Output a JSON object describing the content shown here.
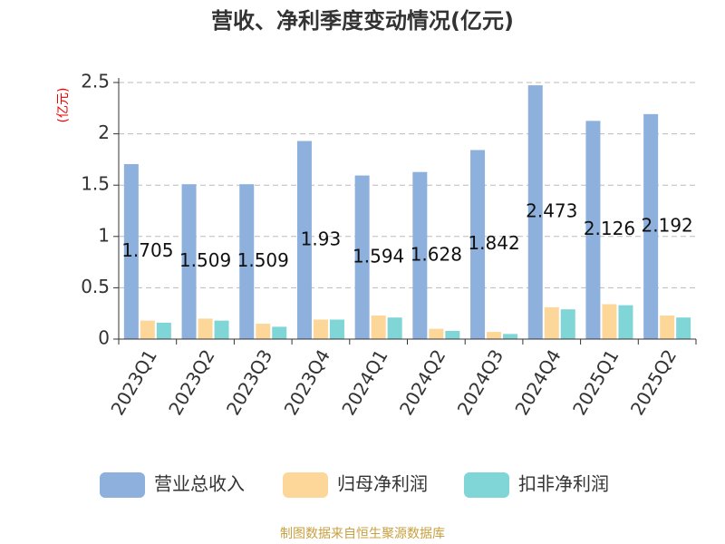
{
  "chart_data": {
    "type": "bar",
    "title": "营收、净利季度变动情况(亿元)",
    "y_label": "(亿元)",
    "categories": [
      "2023Q1",
      "2023Q2",
      "2023Q3",
      "2023Q4",
      "2024Q1",
      "2024Q2",
      "2024Q3",
      "2024Q4",
      "2025Q1",
      "2025Q2"
    ],
    "series": [
      {
        "name": "营业总收入",
        "color": "#8eb0dd",
        "values": [
          1.705,
          1.509,
          1.509,
          1.93,
          1.594,
          1.628,
          1.842,
          2.473,
          2.126,
          2.192
        ],
        "show_labels": true
      },
      {
        "name": "归母净利润",
        "color": "#fdd79a",
        "values": [
          0.18,
          0.2,
          0.15,
          0.19,
          0.23,
          0.1,
          0.07,
          0.31,
          0.34,
          0.23
        ]
      },
      {
        "name": "扣非净利润",
        "color": "#80d5d6",
        "values": [
          0.16,
          0.18,
          0.12,
          0.19,
          0.21,
          0.08,
          0.05,
          0.29,
          0.33,
          0.21
        ]
      }
    ],
    "ylim": [
      0,
      2.5
    ],
    "yticks": [
      0,
      0.5,
      1,
      1.5,
      2,
      2.5
    ],
    "grid": true,
    "source": "制图数据来自恒生聚源数据库"
  }
}
